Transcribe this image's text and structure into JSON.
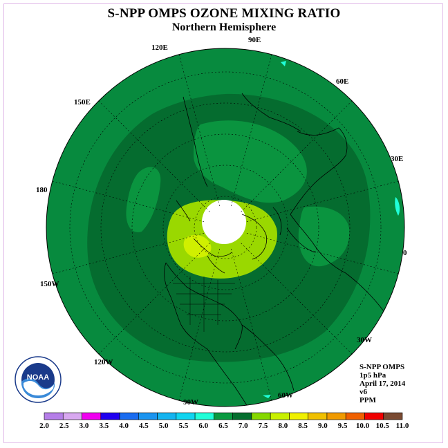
{
  "title": "S-NPP OMPS OZONE MIXING RATIO",
  "subtitle": "Northern Hemisphere",
  "longitude_labels": [
    "90E",
    "60E",
    "30E",
    "0",
    "30W",
    "60W",
    "90W",
    "120W",
    "150W",
    "180",
    "150E",
    "120E"
  ],
  "info": {
    "instrument": "S-NPP OMPS",
    "level": "1p5 hPa",
    "date": "April 17, 2014",
    "version": "v6",
    "units": "PPM"
  },
  "logo": {
    "text": "NOAA",
    "name": "noaa-logo"
  },
  "colorbar": {
    "labels": [
      "2.0",
      "2.5",
      "3.0",
      "3.5",
      "4.0",
      "4.5",
      "5.0",
      "5.5",
      "6.0",
      "6.5",
      "7.0",
      "7.5",
      "8.0",
      "8.5",
      "9.0",
      "9.5",
      "10.0",
      "10.5",
      "11.0"
    ],
    "colors": [
      "#b57ee8",
      "#d8a8f0",
      "#f000f0",
      "#2000f0",
      "#1a6cf0",
      "#1a94f0",
      "#14b4f0",
      "#10d4f0",
      "#20ffd8",
      "#0a9a40",
      "#056e2e",
      "#86d800",
      "#c8f000",
      "#f0f000",
      "#f0c000",
      "#f09a00",
      "#f06000",
      "#f00000",
      "#7a4a32"
    ]
  },
  "map_colors": {
    "outer": "#078a3e",
    "band": "#056c2f",
    "inner": "#0a943f",
    "yellowgreen": "#9ad800",
    "lightyellow": "#d0f000",
    "pole": "#ffffff",
    "cyan": "#20ffd8"
  }
}
